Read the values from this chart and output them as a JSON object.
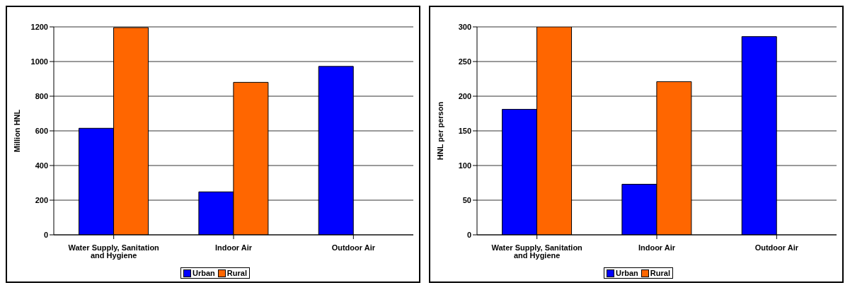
{
  "chart_data": [
    {
      "type": "bar",
      "categories": [
        "Water Supply, Sanitation and Hygiene",
        "Indoor Air",
        "Outdoor Air"
      ],
      "ylabel": "Million HNL",
      "ylim": [
        0,
        1200
      ],
      "yticks": [
        0,
        200,
        400,
        600,
        800,
        1000,
        1200
      ],
      "grid": "y",
      "legend": "bottom",
      "series": [
        {
          "name": "Urban",
          "color": "#0000ff",
          "values": [
            615,
            248,
            972
          ]
        },
        {
          "name": "Rural",
          "color": "#ff6600",
          "values": [
            1196,
            880,
            null
          ]
        }
      ]
    },
    {
      "type": "bar",
      "categories": [
        "Water Supply, Sanitation and Hygiene",
        "Indoor Air",
        "Outdoor Air"
      ],
      "ylabel": "HNL per person",
      "ylim": [
        0,
        300
      ],
      "yticks": [
        0,
        50,
        100,
        150,
        200,
        250,
        300
      ],
      "grid": "y",
      "legend": "bottom",
      "series": [
        {
          "name": "Urban",
          "color": "#0000ff",
          "values": [
            181,
            73,
            286
          ]
        },
        {
          "name": "Rural",
          "color": "#ff6600",
          "values": [
            300,
            221,
            null
          ]
        }
      ]
    }
  ]
}
